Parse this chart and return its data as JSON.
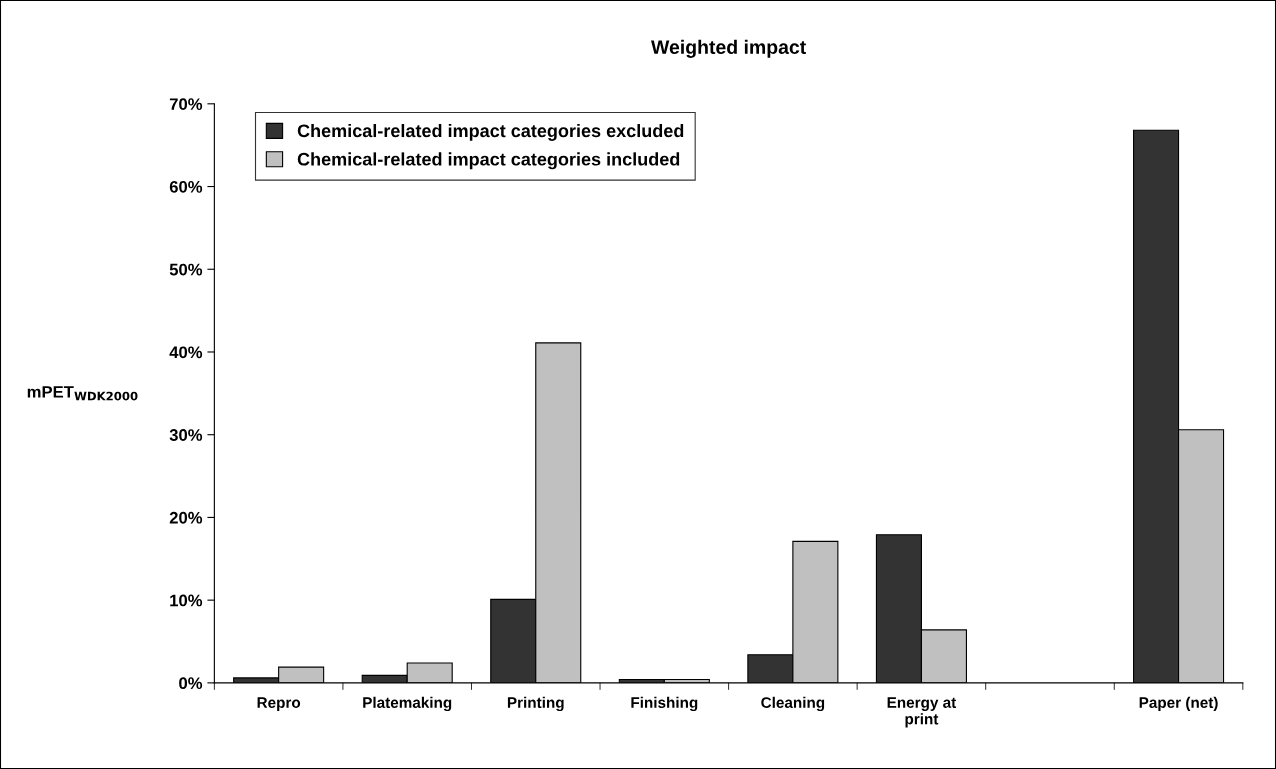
{
  "chart_data": {
    "type": "bar",
    "title": "Weighted impact",
    "ylabel": "mPET$_{WDK2000}$",
    "categories": [
      "Repro",
      "Platemaking",
      "Printing",
      "Finishing",
      "Cleaning",
      "Energy at\nprint",
      null,
      "Paper (net)"
    ],
    "series": [
      {
        "name": "Chemical-related impact categories excluded",
        "color": "#333333",
        "values": [
          0.6,
          0.9,
          10.1,
          0.4,
          3.4,
          17.9,
          null,
          66.8
        ]
      },
      {
        "name": "Chemical-related impact categories included",
        "color": "#c0c0c0",
        "values": [
          1.9,
          2.4,
          41.1,
          0.4,
          17.1,
          6.4,
          null,
          30.6
        ]
      }
    ],
    "ylim": [
      0,
      70
    ],
    "yticks": [
      {
        "value": 0,
        "label": "0%"
      },
      {
        "value": 10,
        "label": "10%"
      },
      {
        "value": 20,
        "label": "20%"
      },
      {
        "value": 30,
        "label": "30%"
      },
      {
        "value": 40,
        "label": "40%"
      },
      {
        "value": 50,
        "label": "50%"
      },
      {
        "value": 60,
        "label": "60%"
      },
      {
        "value": 70,
        "label": "70%"
      }
    ],
    "grid": false,
    "legend": "top left"
  }
}
